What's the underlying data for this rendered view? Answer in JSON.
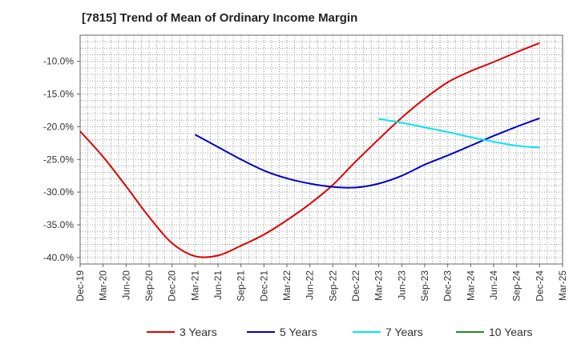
{
  "chart_data": {
    "type": "line",
    "title": "[7815]  Trend of Mean of Ordinary Income Margin",
    "xlabel": "",
    "ylabel": "",
    "x_ticks": [
      "Dec-19",
      "Mar-20",
      "Jun-20",
      "Sep-20",
      "Dec-20",
      "Mar-21",
      "Jun-21",
      "Sep-21",
      "Dec-21",
      "Mar-22",
      "Jun-22",
      "Sep-22",
      "Dec-22",
      "Mar-23",
      "Jun-23",
      "Sep-23",
      "Dec-23",
      "Mar-24",
      "Jun-24",
      "Sep-24",
      "Dec-24",
      "Mar-25"
    ],
    "y_ticks": [
      "-10.0%",
      "-15.0%",
      "-20.0%",
      "-25.0%",
      "-30.0%",
      "-35.0%",
      "-40.0%"
    ],
    "y_tick_values": [
      -10,
      -15,
      -20,
      -25,
      -30,
      -35,
      -40
    ],
    "ylim": [
      -41,
      -6
    ],
    "grid": true,
    "legend_position": "bottom",
    "series": [
      {
        "name": "3 Years",
        "color": "#dd0000",
        "x": [
          "Dec-19",
          "Mar-20",
          "Jun-20",
          "Sep-20",
          "Dec-20",
          "Mar-21",
          "Jun-21",
          "Sep-21",
          "Dec-21",
          "Mar-22",
          "Jun-22",
          "Sep-22",
          "Dec-22",
          "Mar-23",
          "Jun-23",
          "Sep-23",
          "Dec-23",
          "Mar-24",
          "Jun-24",
          "Sep-24",
          "Dec-24"
        ],
        "values": [
          -20.7,
          -24.6,
          -29.1,
          -33.8,
          -37.8,
          -39.8,
          -39.7,
          -38.2,
          -36.5,
          -34.3,
          -31.8,
          -28.9,
          -25.3,
          -21.9,
          -18.6,
          -15.7,
          -13.2,
          -11.5,
          -10.1,
          -8.6,
          -7.2
        ]
      },
      {
        "name": "5 Years",
        "color": "#0000cc",
        "x": [
          "Mar-21",
          "Jun-21",
          "Sep-21",
          "Dec-21",
          "Mar-22",
          "Jun-22",
          "Sep-22",
          "Dec-22",
          "Mar-23",
          "Jun-23",
          "Sep-23",
          "Dec-23",
          "Mar-24",
          "Jun-24",
          "Sep-24",
          "Dec-24"
        ],
        "values": [
          -21.2,
          -23.1,
          -25.0,
          -26.7,
          -27.9,
          -28.7,
          -29.2,
          -29.3,
          -28.7,
          -27.5,
          -25.8,
          -24.4,
          -22.9,
          -21.4,
          -20.0,
          -18.7
        ]
      },
      {
        "name": "7 Years",
        "color": "#00e5ee",
        "x": [
          "Mar-23",
          "Jun-23",
          "Sep-23",
          "Dec-23",
          "Mar-24",
          "Jun-24",
          "Sep-24",
          "Dec-24"
        ],
        "values": [
          -18.8,
          -19.4,
          -20.1,
          -20.8,
          -21.6,
          -22.3,
          -22.9,
          -23.2
        ]
      },
      {
        "name": "10 Years",
        "color": "#228b22",
        "x": [],
        "values": []
      }
    ]
  }
}
